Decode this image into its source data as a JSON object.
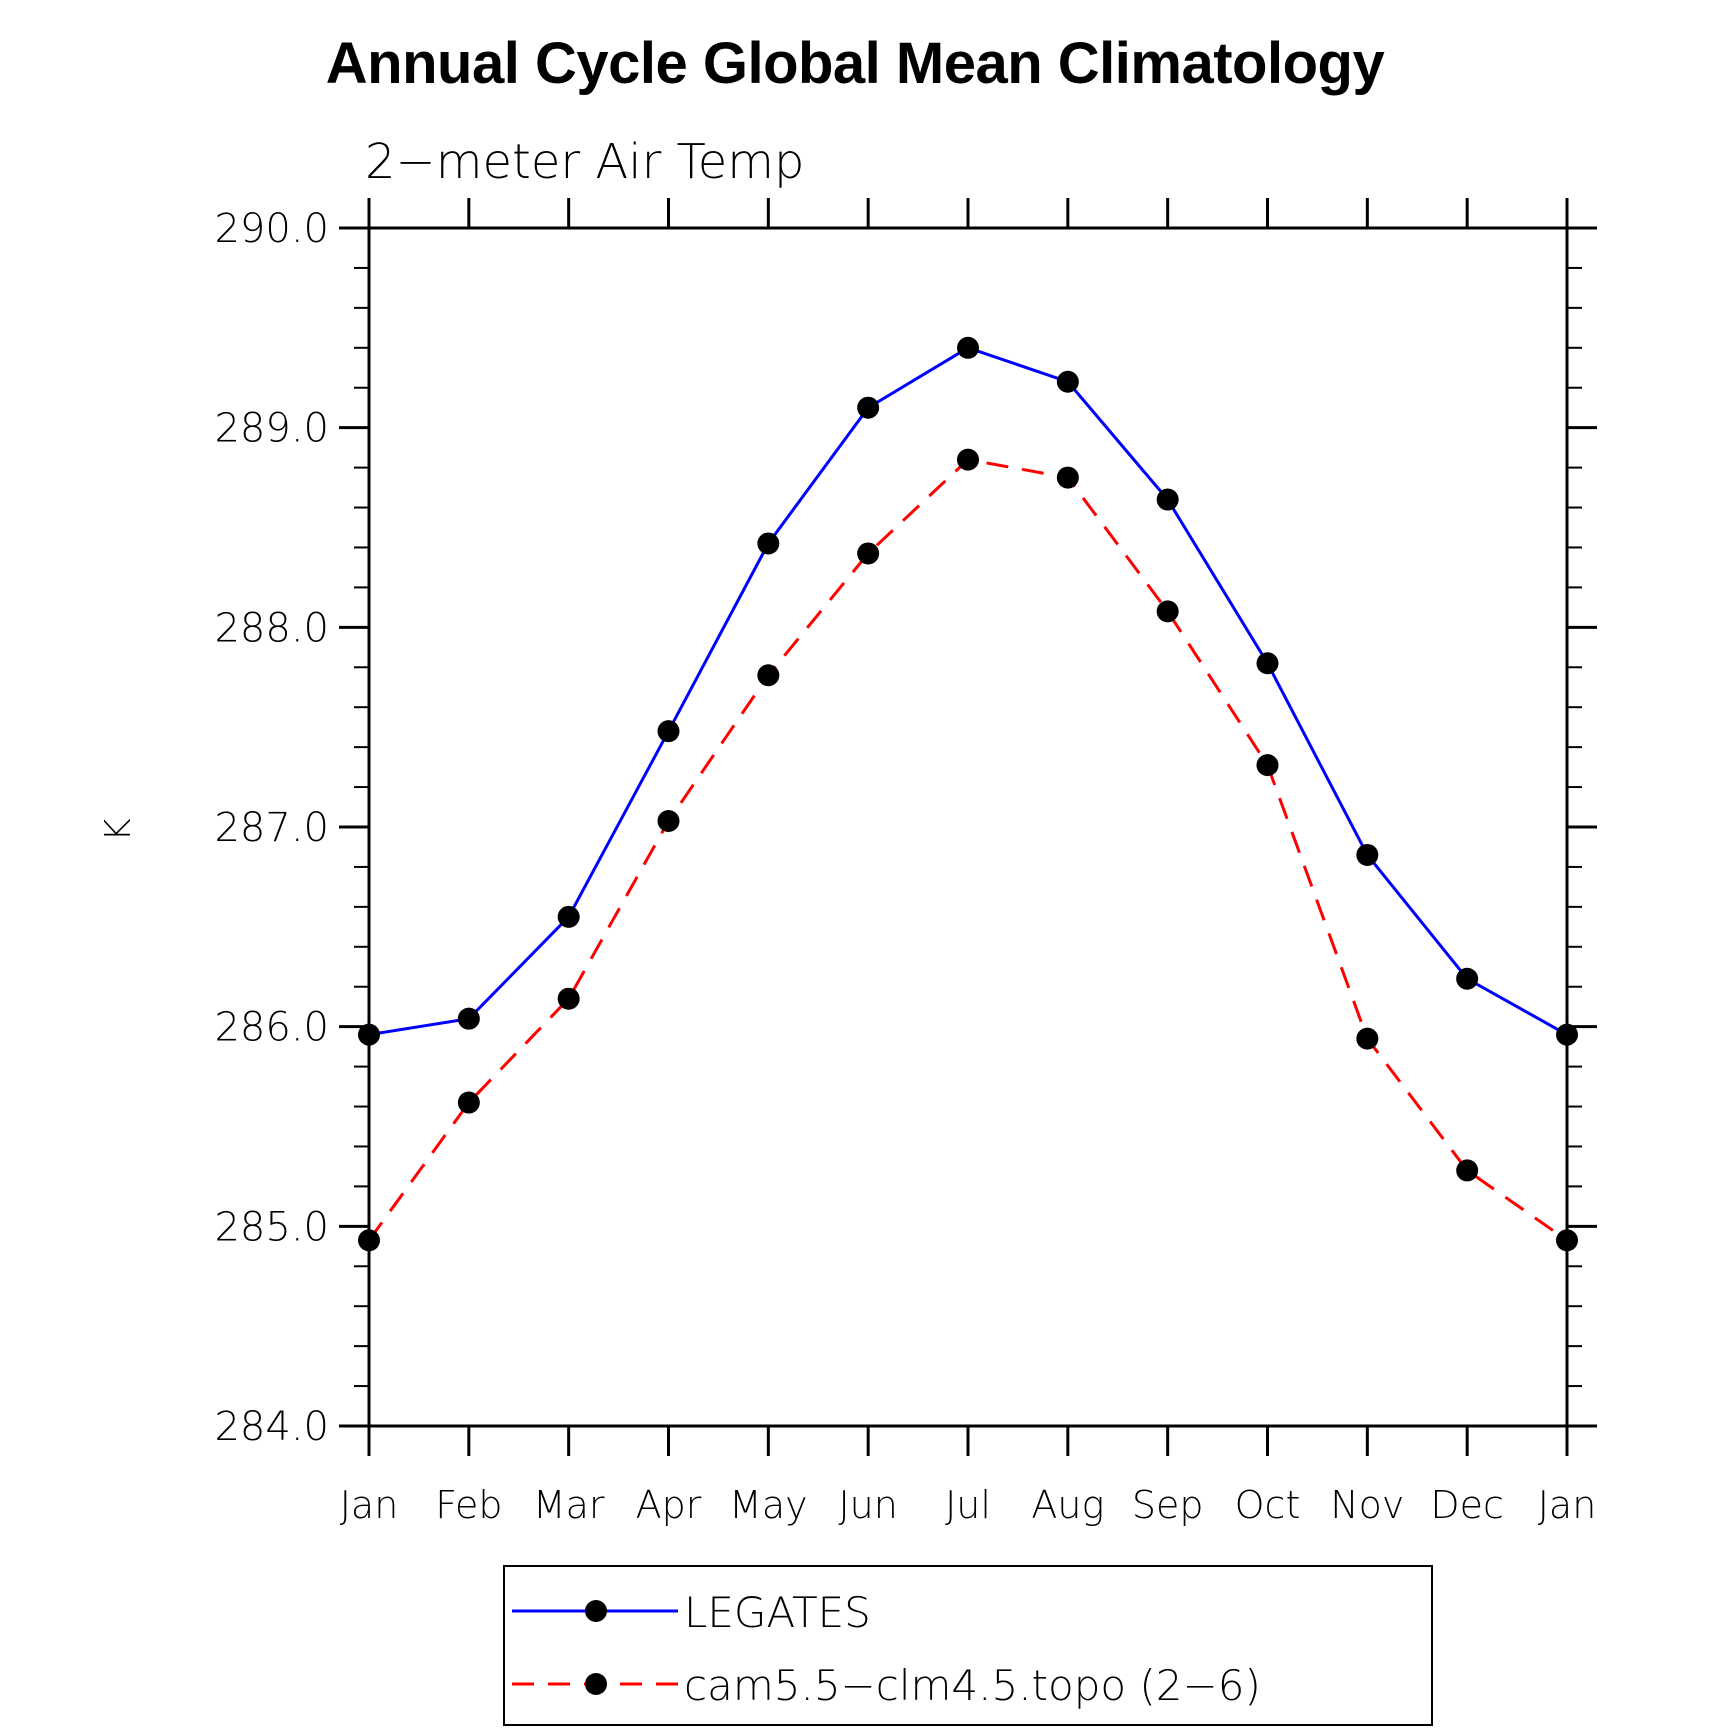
{
  "chart_data": {
    "type": "line",
    "title": "Annual Cycle Global Mean Climatology",
    "subtitle": "2−meter Air Temp",
    "ylabel": "K",
    "xlabel": "",
    "ylim": [
      284.0,
      290.0
    ],
    "yticks": [
      "284.0",
      "285.0",
      "286.0",
      "287.0",
      "288.0",
      "289.0",
      "290.0"
    ],
    "categories": [
      "Jan",
      "Feb",
      "Mar",
      "Apr",
      "May",
      "Jun",
      "Jul",
      "Aug",
      "Sep",
      "Oct",
      "Nov",
      "Dec",
      "Jan"
    ],
    "series": [
      {
        "name": "LEGATES",
        "color": "#0000ff",
        "style": "solid",
        "values": [
          285.96,
          286.04,
          286.55,
          287.48,
          288.42,
          289.1,
          289.4,
          289.23,
          288.64,
          287.82,
          286.86,
          286.24,
          285.96
        ]
      },
      {
        "name": "cam5.5−clm4.5.topo (2−6)",
        "color": "#ff0000",
        "style": "dashed",
        "values": [
          284.93,
          285.62,
          286.14,
          287.03,
          287.76,
          288.37,
          288.84,
          288.75,
          288.08,
          287.31,
          285.94,
          285.28,
          284.93
        ]
      }
    ],
    "legend_position": "bottom",
    "marker": "filled-circle"
  }
}
